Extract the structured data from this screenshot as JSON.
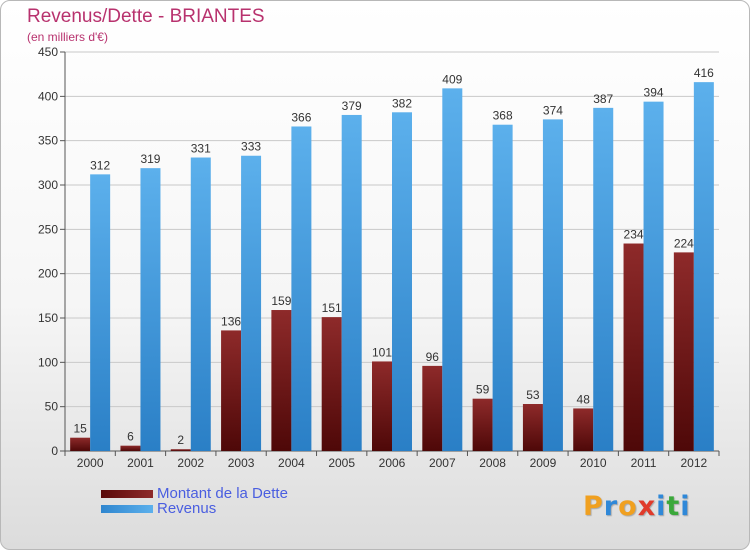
{
  "title": "Revenus/Dette - BRIANTES",
  "subtitle": "(en milliers d'€)",
  "logo": {
    "text": "Proxiti",
    "letters": [
      {
        "ch": "P",
        "color": "#f0a020"
      },
      {
        "ch": "r",
        "color": "#2f88d8"
      },
      {
        "ch": "o",
        "color": "#f0a020"
      },
      {
        "ch": "x",
        "color": "#e03a2a"
      },
      {
        "ch": "i",
        "color": "#2f88d8"
      },
      {
        "ch": "t",
        "color": "#3aa83a"
      },
      {
        "ch": "i",
        "color": "#2f88d8"
      }
    ]
  },
  "chart_data": {
    "type": "bar",
    "categories": [
      "2000",
      "2001",
      "2002",
      "2003",
      "2004",
      "2005",
      "2006",
      "2007",
      "2008",
      "2009",
      "2010",
      "2011",
      "2012"
    ],
    "series": [
      {
        "name": "Montant de la Dette",
        "values": [
          15,
          6,
          2,
          136,
          159,
          151,
          101,
          96,
          59,
          53,
          48,
          234,
          224
        ],
        "color": "#7a1a1a"
      },
      {
        "name": "Revenus",
        "values": [
          312,
          319,
          331,
          333,
          366,
          379,
          382,
          409,
          368,
          374,
          387,
          394,
          416
        ],
        "color": "#4aa3e6"
      }
    ],
    "ylim": [
      0,
      450
    ],
    "yticks": [
      0,
      50,
      100,
      150,
      200,
      250,
      300,
      350,
      400,
      450
    ],
    "grid": true,
    "legend": "bottom-left",
    "title": "Revenus/Dette - BRIANTES",
    "ylabel": "(en milliers d'€)"
  }
}
